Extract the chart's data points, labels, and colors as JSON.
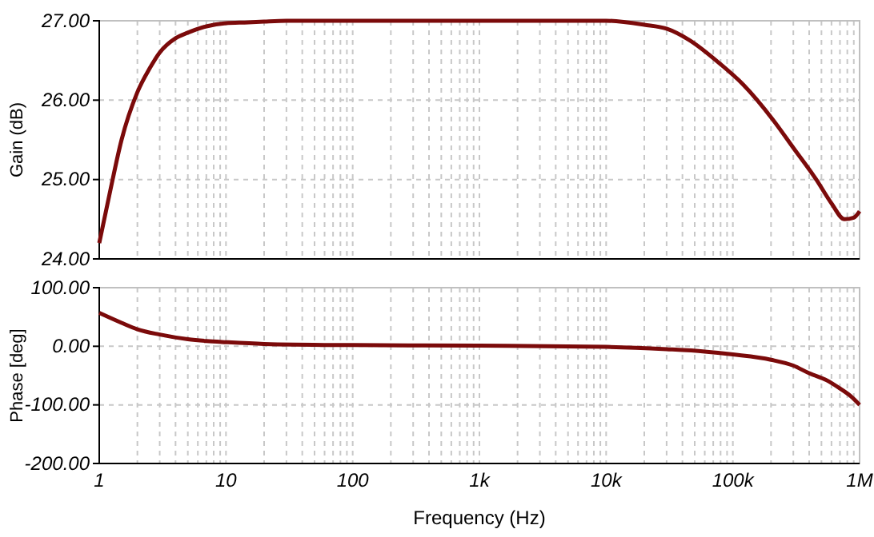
{
  "chart_data": [
    {
      "type": "line",
      "ylabel": "Gain (dB)",
      "log": "x",
      "grid": true,
      "tick_labels": "y",
      "xlim": [
        1,
        1000000
      ],
      "ylim": [
        24,
        27
      ],
      "xticks": [
        {
          "value": 1,
          "label": null
        },
        {
          "value": 2,
          "label": null
        },
        {
          "value": 3,
          "label": null
        },
        {
          "value": 4,
          "label": null
        },
        {
          "value": 5,
          "label": null
        },
        {
          "value": 6,
          "label": null
        },
        {
          "value": 7,
          "label": null
        },
        {
          "value": 8,
          "label": null
        },
        {
          "value": 9,
          "label": null
        },
        {
          "value": 10,
          "label": null
        },
        {
          "value": 20,
          "label": null
        },
        {
          "value": 30,
          "label": null
        },
        {
          "value": 40,
          "label": null
        },
        {
          "value": 50,
          "label": null
        },
        {
          "value": 60,
          "label": null
        },
        {
          "value": 70,
          "label": null
        },
        {
          "value": 80,
          "label": null
        },
        {
          "value": 90,
          "label": null
        },
        {
          "value": 100,
          "label": null
        },
        {
          "value": 200,
          "label": null
        },
        {
          "value": 300,
          "label": null
        },
        {
          "value": 400,
          "label": null
        },
        {
          "value": 500,
          "label": null
        },
        {
          "value": 600,
          "label": null
        },
        {
          "value": 700,
          "label": null
        },
        {
          "value": 800,
          "label": null
        },
        {
          "value": 900,
          "label": null
        },
        {
          "value": 1000,
          "label": null
        },
        {
          "value": 2000,
          "label": null
        },
        {
          "value": 3000,
          "label": null
        },
        {
          "value": 4000,
          "label": null
        },
        {
          "value": 5000,
          "label": null
        },
        {
          "value": 6000,
          "label": null
        },
        {
          "value": 7000,
          "label": null
        },
        {
          "value": 8000,
          "label": null
        },
        {
          "value": 9000,
          "label": null
        },
        {
          "value": 10000,
          "label": null
        },
        {
          "value": 20000,
          "label": null
        },
        {
          "value": 30000,
          "label": null
        },
        {
          "value": 40000,
          "label": null
        },
        {
          "value": 50000,
          "label": null
        },
        {
          "value": 60000,
          "label": null
        },
        {
          "value": 70000,
          "label": null
        },
        {
          "value": 80000,
          "label": null
        },
        {
          "value": 90000,
          "label": null
        },
        {
          "value": 100000,
          "label": null
        },
        {
          "value": 200000,
          "label": null
        },
        {
          "value": 300000,
          "label": null
        },
        {
          "value": 400000,
          "label": null
        },
        {
          "value": 500000,
          "label": null
        },
        {
          "value": 600000,
          "label": null
        },
        {
          "value": 700000,
          "label": null
        },
        {
          "value": 800000,
          "label": null
        },
        {
          "value": 900000,
          "label": null
        },
        {
          "value": 1000000,
          "label": null
        }
      ],
      "yticks": [
        {
          "value": 24,
          "label": "24.00"
        },
        {
          "value": 25,
          "label": "25.00"
        },
        {
          "value": 26,
          "label": "26.00"
        },
        {
          "value": 27,
          "label": "27.00"
        }
      ],
      "series": [
        {
          "color": "#7b0a0a",
          "x": [
            1,
            1.2,
            1.5,
            2,
            2.5,
            3,
            4,
            5,
            7,
            10,
            15,
            20,
            30,
            100,
            1000,
            10000,
            20000,
            30000,
            45000,
            79000,
            120000,
            208000,
            300000,
            455000,
            600000,
            760000,
            900000,
            1000000
          ],
          "values": [
            24.2,
            24.8,
            25.5,
            26.1,
            26.4,
            26.6,
            26.78,
            26.85,
            26.93,
            26.97,
            26.98,
            26.99,
            27,
            27,
            27,
            27,
            26.95,
            26.9,
            26.76,
            26.46,
            26.2,
            25.75,
            25.4,
            25.0,
            24.7,
            24.5,
            24.52,
            24.6
          ]
        }
      ]
    },
    {
      "type": "line",
      "ylabel": "Phase [deg]",
      "xlabel": "Frequency (Hz)",
      "log": "x",
      "grid": true,
      "xlim": [
        1,
        1000000
      ],
      "ylim": [
        -200,
        100
      ],
      "xticks": [
        {
          "value": 1,
          "label": "1"
        },
        {
          "value": 2,
          "label": null
        },
        {
          "value": 3,
          "label": null
        },
        {
          "value": 4,
          "label": null
        },
        {
          "value": 5,
          "label": null
        },
        {
          "value": 6,
          "label": null
        },
        {
          "value": 7,
          "label": null
        },
        {
          "value": 8,
          "label": null
        },
        {
          "value": 9,
          "label": null
        },
        {
          "value": 10,
          "label": "10"
        },
        {
          "value": 20,
          "label": null
        },
        {
          "value": 30,
          "label": null
        },
        {
          "value": 40,
          "label": null
        },
        {
          "value": 50,
          "label": null
        },
        {
          "value": 60,
          "label": null
        },
        {
          "value": 70,
          "label": null
        },
        {
          "value": 80,
          "label": null
        },
        {
          "value": 90,
          "label": null
        },
        {
          "value": 100,
          "label": "100"
        },
        {
          "value": 200,
          "label": null
        },
        {
          "value": 300,
          "label": null
        },
        {
          "value": 400,
          "label": null
        },
        {
          "value": 500,
          "label": null
        },
        {
          "value": 600,
          "label": null
        },
        {
          "value": 700,
          "label": null
        },
        {
          "value": 800,
          "label": null
        },
        {
          "value": 900,
          "label": null
        },
        {
          "value": 1000,
          "label": "1k"
        },
        {
          "value": 2000,
          "label": null
        },
        {
          "value": 3000,
          "label": null
        },
        {
          "value": 4000,
          "label": null
        },
        {
          "value": 5000,
          "label": null
        },
        {
          "value": 6000,
          "label": null
        },
        {
          "value": 7000,
          "label": null
        },
        {
          "value": 8000,
          "label": null
        },
        {
          "value": 9000,
          "label": null
        },
        {
          "value": 10000,
          "label": "10k"
        },
        {
          "value": 20000,
          "label": null
        },
        {
          "value": 30000,
          "label": null
        },
        {
          "value": 40000,
          "label": null
        },
        {
          "value": 50000,
          "label": null
        },
        {
          "value": 60000,
          "label": null
        },
        {
          "value": 70000,
          "label": null
        },
        {
          "value": 80000,
          "label": null
        },
        {
          "value": 90000,
          "label": null
        },
        {
          "value": 100000,
          "label": "100k"
        },
        {
          "value": 200000,
          "label": null
        },
        {
          "value": 300000,
          "label": null
        },
        {
          "value": 400000,
          "label": null
        },
        {
          "value": 500000,
          "label": null
        },
        {
          "value": 600000,
          "label": null
        },
        {
          "value": 700000,
          "label": null
        },
        {
          "value": 800000,
          "label": null
        },
        {
          "value": 900000,
          "label": null
        },
        {
          "value": 1000000,
          "label": "1M"
        }
      ],
      "yticks": [
        {
          "value": -200,
          "label": "-200.00"
        },
        {
          "value": -100,
          "label": "-100.00"
        },
        {
          "value": 0,
          "label": "0.00"
        },
        {
          "value": 100,
          "label": "100.00"
        }
      ],
      "series": [
        {
          "color": "#7b0a0a",
          "x": [
            1,
            1.5,
            2,
            3,
            5,
            7,
            10,
            20,
            100,
            1000,
            10000,
            30000,
            60000,
            100000,
            200000,
            300000,
            400000,
            550000,
            700000,
            850000,
            1000000
          ],
          "values": [
            57,
            40,
            29,
            20,
            12,
            9,
            7,
            4,
            2,
            1,
            -1,
            -5,
            -9,
            -14,
            -23,
            -33,
            -46,
            -58,
            -72,
            -85,
            -100
          ]
        }
      ]
    }
  ]
}
